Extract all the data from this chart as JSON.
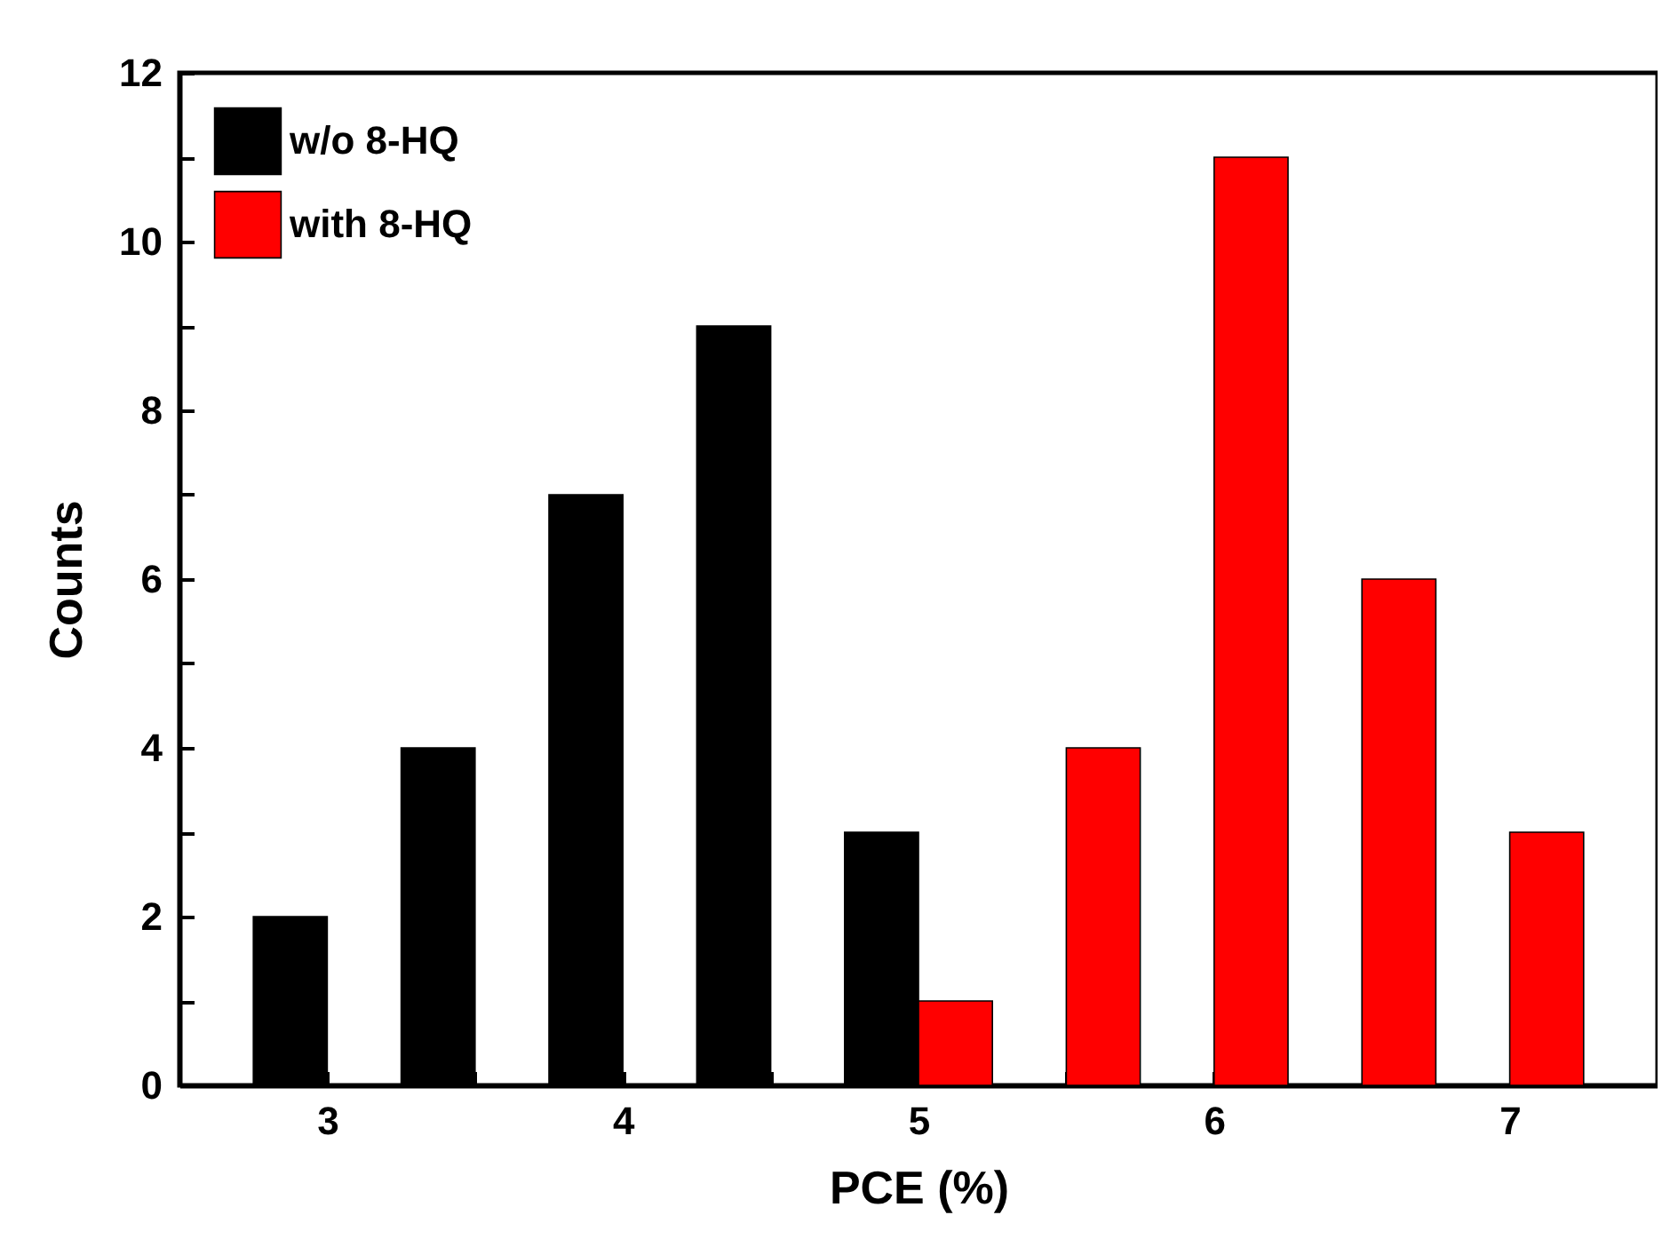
{
  "chart_data": {
    "type": "bar",
    "xlabel": "PCE (%)",
    "ylabel": "Counts",
    "xlim": [
      2.5,
      7.5
    ],
    "xticks": [
      3,
      {
        "value": 3.5,
        "label": null
      },
      4,
      {
        "value": 4.5,
        "label": null
      },
      5,
      {
        "value": 5.5,
        "label": null
      },
      6,
      {
        "value": 6.5,
        "label": null
      },
      7
    ],
    "ylim": [
      0,
      12
    ],
    "yticks": [
      0,
      {
        "value": 1,
        "label": null
      },
      2,
      {
        "value": 3,
        "label": null
      },
      4,
      {
        "value": 5,
        "label": null
      },
      6,
      {
        "value": 7,
        "label": null
      },
      8,
      {
        "value": 9,
        "label": null
      },
      10,
      {
        "value": 11,
        "label": null
      },
      12
    ],
    "legend": "top left",
    "grid": false,
    "series": [
      {
        "name": "w/o 8-HQ",
        "color": "#000000",
        "x": [
          2.875,
          3.375,
          3.875,
          4.375,
          4.875
        ],
        "values": [
          2,
          4,
          7,
          9,
          3
        ]
      },
      {
        "name": "with 8-HQ",
        "color": "#ff0000",
        "x": [
          5.125,
          5.625,
          6.125,
          6.625,
          7.125
        ],
        "values": [
          1,
          4,
          11,
          6,
          3
        ]
      }
    ]
  }
}
